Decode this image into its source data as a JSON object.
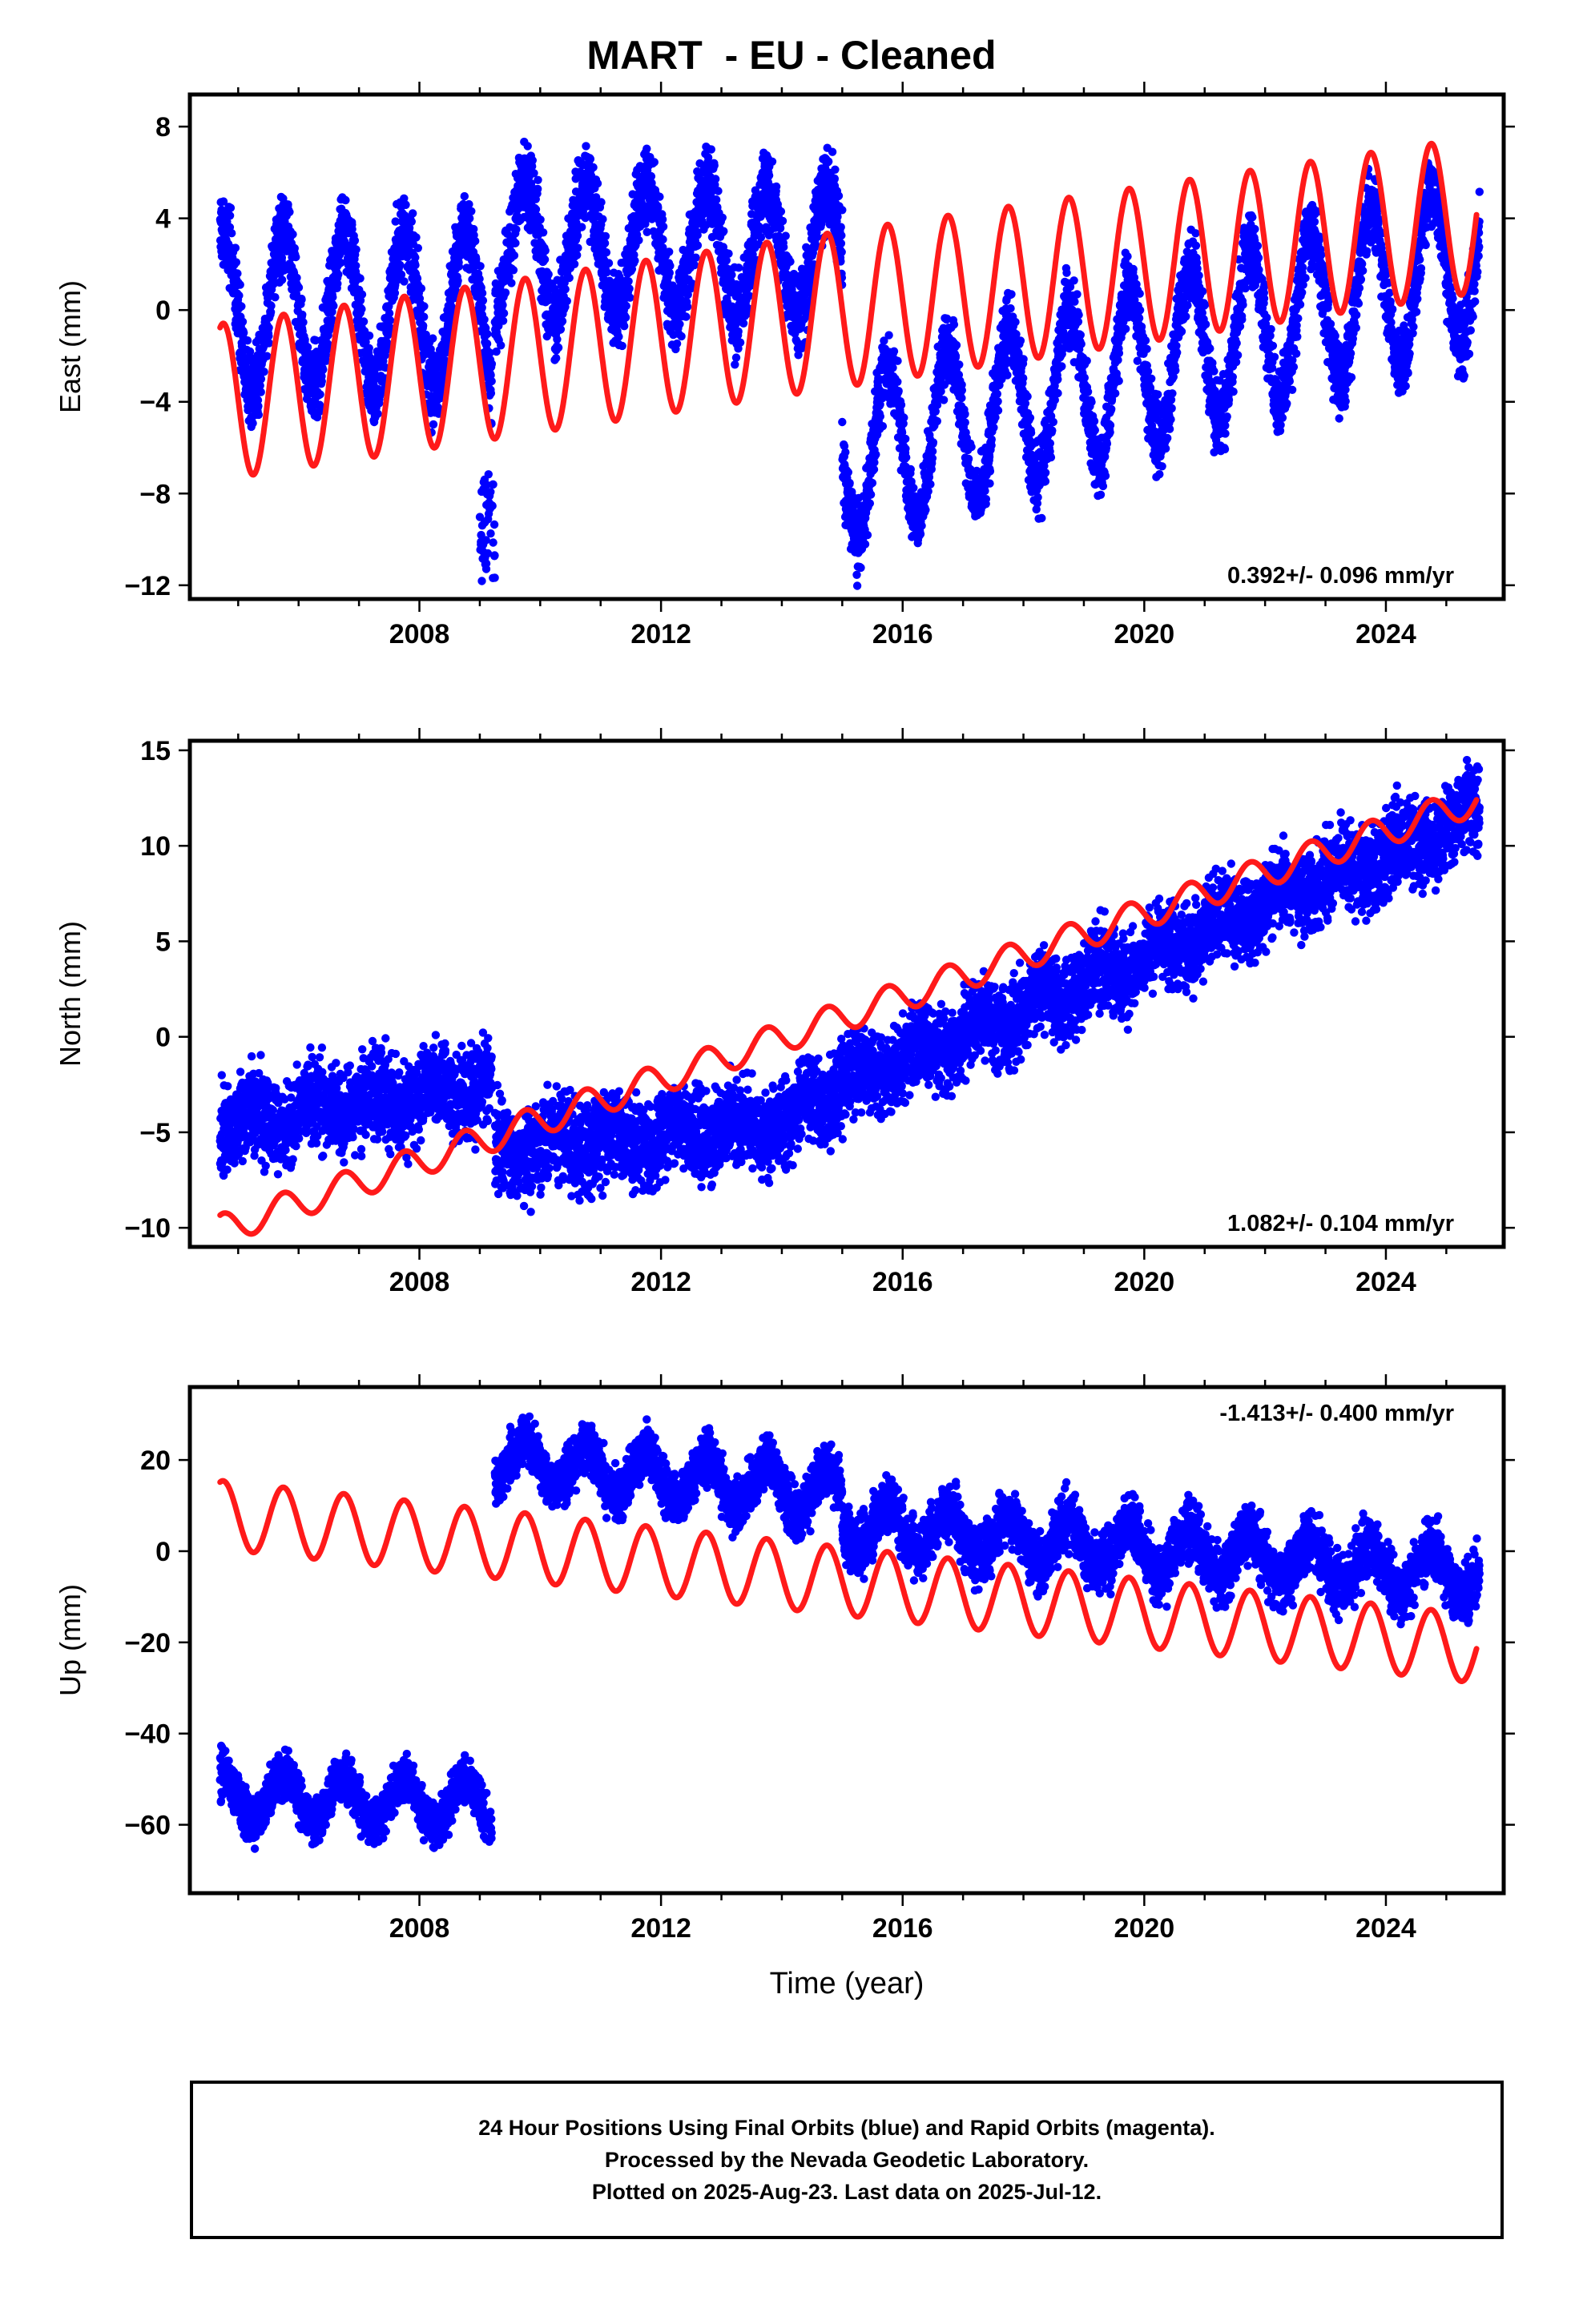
{
  "title": "MART  - EU - Cleaned",
  "colors": {
    "observations": "#0000ff",
    "model": "#ff1a1a",
    "frame": "#000000"
  },
  "footer": {
    "line1": "24 Hour Positions Using Final Orbits (blue) and Rapid Orbits (magenta).",
    "line2": "Processed by the Nevada Geodetic Laboratory.",
    "line3": "Plotted on 2025-Aug-23. Last data on 2025-Jul-12."
  },
  "chart_data": [
    {
      "type": "scatter",
      "title": "MART  - EU - Cleaned",
      "ylabel": "East (mm)",
      "xlabel": "",
      "xlim": [
        2004.2,
        2025.95
      ],
      "ylim": [
        -12.6,
        9.4
      ],
      "xticks": [
        2008,
        2012,
        2016,
        2020,
        2024
      ],
      "yticks": [
        8,
        4,
        0,
        -4,
        -8,
        -12
      ],
      "rate_label": "0.392+/- 0.096 mm/yr",
      "rate_position": "bottom-right",
      "grid": false,
      "series": [
        {
          "role": "observations",
          "segments": [
            {
              "start": 2004.7,
              "end": 2009.2,
              "base": 0.0,
              "slope": 0.0,
              "amp": 3.4,
              "phase": 0.5,
              "noise": 1.2
            },
            {
              "start": 2009.25,
              "end": 2015.0,
              "base": 2.8,
              "slope": -0.05,
              "amp": 2.8,
              "phase": 0.5,
              "noise": 1.2
            },
            {
              "start": 2015.0,
              "end": 2025.55,
              "base": -6.6,
              "slope": 0.85,
              "amp": 3.5,
              "phase": 0.5,
              "noise": 1.1
            }
          ],
          "outliers": [
            {
              "start": 2009.0,
              "end": 2009.25,
              "center": -9.5,
              "spread": 2.4
            }
          ]
        },
        {
          "role": "model",
          "t0": 2004.7,
          "t1": 2025.5,
          "y0": -4.0,
          "slope": 0.392,
          "amp": 3.4,
          "phase": 0.5
        }
      ]
    },
    {
      "type": "scatter",
      "ylabel": "North (mm)",
      "xlabel": "",
      "xlim": [
        2004.2,
        2025.95
      ],
      "ylim": [
        -11.0,
        15.5
      ],
      "xticks": [
        2008,
        2012,
        2016,
        2020,
        2024
      ],
      "yticks": [
        15,
        10,
        5,
        0,
        -5,
        -10
      ],
      "rate_label": "1.082+/- 0.104 mm/yr",
      "rate_position": "bottom-right",
      "grid": false,
      "series": [
        {
          "role": "observations",
          "segments": [
            {
              "start": 2004.7,
              "end": 2009.2,
              "base": -4.6,
              "slope": 0.45,
              "amp": 0.6,
              "phase": 0.0,
              "noise": 1.6
            },
            {
              "start": 2009.25,
              "end": 2014.3,
              "base": -6.0,
              "slope": 0.3,
              "amp": 0.5,
              "phase": 0.0,
              "noise": 1.6
            },
            {
              "start": 2014.3,
              "end": 2025.55,
              "base": -3.5,
              "slope": 1.35,
              "amp": 0.6,
              "phase": 0.0,
              "noise": 1.5
            }
          ],
          "outliers": []
        },
        {
          "role": "model",
          "t0": 2004.7,
          "t1": 2025.5,
          "y0": -10.1,
          "slope": 1.082,
          "amp": 0.8,
          "phase": 0.5
        }
      ]
    },
    {
      "type": "scatter",
      "ylabel": "Up (mm)",
      "xlabel": "Time (year)",
      "xlim": [
        2004.2,
        2025.95
      ],
      "ylim": [
        -75,
        36
      ],
      "xticks": [
        2008,
        2012,
        2016,
        2020,
        2024
      ],
      "yticks": [
        20,
        0,
        -20,
        -40,
        -60
      ],
      "rate_label": "-1.413+/- 0.400 mm/yr",
      "rate_position": "top-right",
      "grid": false,
      "series": [
        {
          "role": "observations",
          "segments": [
            {
              "start": 2004.7,
              "end": 2009.2,
              "base": -54.0,
              "slope": -0.3,
              "amp": 5.0,
              "phase": 0.5,
              "noise": 3.5
            },
            {
              "start": 2009.25,
              "end": 2015.0,
              "base": 20.0,
              "slope": -1.3,
              "amp": 5.0,
              "phase": 0.5,
              "noise": 4.0
            },
            {
              "start": 2015.0,
              "end": 2025.55,
              "base": 6.0,
              "slope": -1.1,
              "amp": 5.0,
              "phase": 0.5,
              "noise": 4.5
            }
          ],
          "outliers": []
        },
        {
          "role": "model",
          "t0": 2004.7,
          "t1": 2025.5,
          "y0": 8.0,
          "slope": -1.413,
          "amp": 7.5,
          "phase": 0.5
        }
      ]
    }
  ]
}
